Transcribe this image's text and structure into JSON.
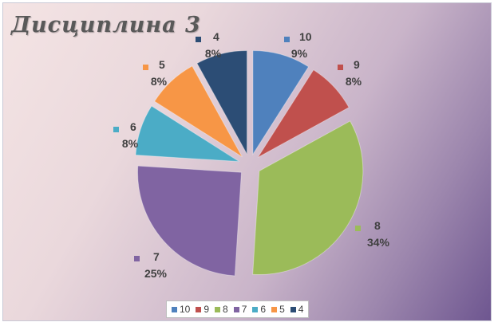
{
  "chart_data": {
    "type": "pie",
    "title": "Дисциплина 3",
    "categories": [
      "10",
      "9",
      "8",
      "7",
      "6",
      "5",
      "4"
    ],
    "values": [
      9,
      8,
      34,
      25,
      8,
      8,
      8
    ],
    "percent_labels": [
      "9%",
      "8%",
      "34%",
      "25%",
      "8%",
      "8%",
      "8%"
    ],
    "colors": [
      "#4f81bd",
      "#c0504d",
      "#9bbb59",
      "#8064a2",
      "#4bacc6",
      "#f79646",
      "#2c4d75"
    ],
    "legend": {
      "position": "bottom",
      "entries": [
        "10",
        "9",
        "8",
        "7",
        "6",
        "5",
        "4"
      ]
    },
    "exploded": true
  }
}
